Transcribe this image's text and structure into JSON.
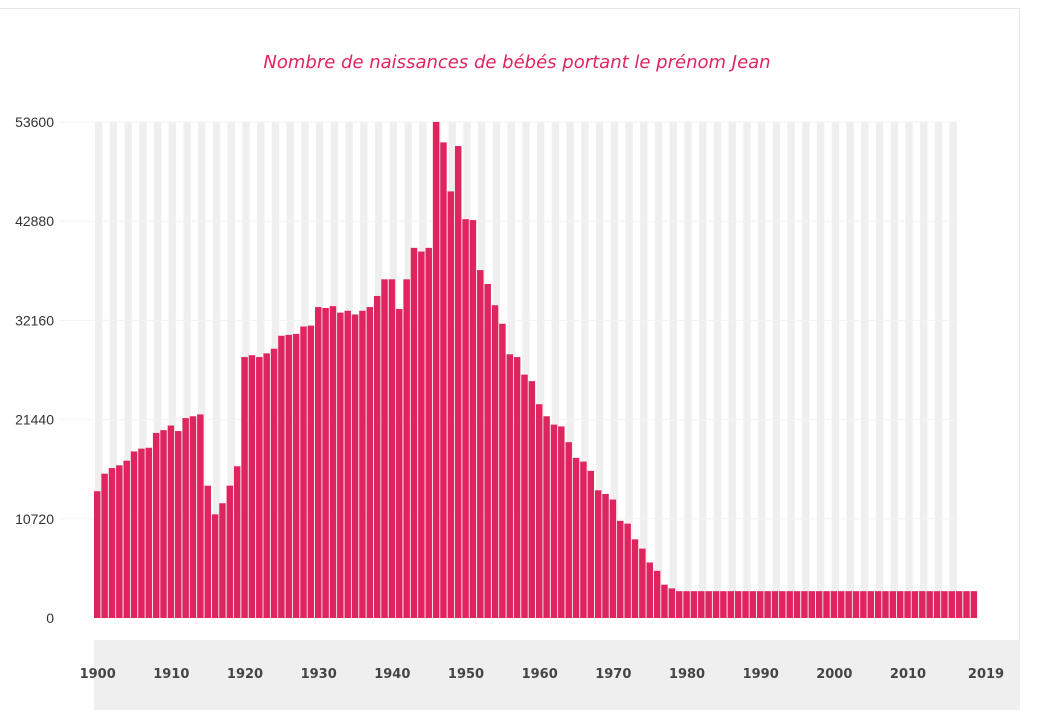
{
  "chart_data": {
    "type": "bar",
    "title": "Nombre de naissances de bébés portant le prénom Jean",
    "xlabel": "",
    "ylabel": "",
    "ylim": [
      0,
      53600
    ],
    "yticks": [
      "0",
      "10720",
      "21440",
      "32160",
      "42880",
      "53600"
    ],
    "xticks": [
      "1900",
      "1910",
      "1920",
      "1930",
      "1940",
      "1950",
      "1960",
      "1970",
      "1980",
      "1990",
      "2000",
      "2010",
      "2019"
    ],
    "grid": "background columns",
    "colors": {
      "bar": "#e0245e",
      "background_column": "#efefef",
      "axis_band": "#efefef",
      "title": "#e0245e"
    },
    "x": [
      1900,
      1901,
      1902,
      1903,
      1904,
      1905,
      1906,
      1907,
      1908,
      1909,
      1910,
      1911,
      1912,
      1913,
      1914,
      1915,
      1916,
      1917,
      1918,
      1919,
      1920,
      1921,
      1922,
      1923,
      1924,
      1925,
      1926,
      1927,
      1928,
      1929,
      1930,
      1931,
      1932,
      1933,
      1934,
      1935,
      1936,
      1937,
      1938,
      1939,
      1940,
      1941,
      1942,
      1943,
      1944,
      1945,
      1946,
      1947,
      1948,
      1949,
      1950,
      1951,
      1952,
      1953,
      1954,
      1955,
      1956,
      1957,
      1958,
      1959,
      1960,
      1961,
      1962,
      1963,
      1964,
      1965,
      1966,
      1967,
      1968,
      1969,
      1970,
      1971,
      1972,
      1973,
      1974,
      1975,
      1976,
      1977,
      1978,
      1979,
      1980,
      1981,
      1982,
      1983,
      1984,
      1985,
      1986,
      1987,
      1988,
      1989,
      1990,
      1991,
      1992,
      1993,
      1994,
      1995,
      1996,
      1997,
      1998,
      1999,
      2000,
      2001,
      2002,
      2003,
      2004,
      2005,
      2006,
      2007,
      2008,
      2009,
      2010,
      2011,
      2012,
      2013,
      2014,
      2015,
      2016,
      2017,
      2018,
      2019
    ],
    "values": [
      13700,
      15600,
      16200,
      16500,
      17000,
      18000,
      18300,
      18400,
      20000,
      20300,
      20800,
      20200,
      21600,
      21800,
      22000,
      14300,
      11200,
      12400,
      14300,
      16400,
      28200,
      28400,
      28200,
      28600,
      29100,
      30500,
      30600,
      30700,
      31500,
      31600,
      33600,
      33500,
      33700,
      33000,
      33200,
      32800,
      33200,
      33600,
      34800,
      36600,
      36600,
      33400,
      36600,
      40000,
      39600,
      40000,
      53600,
      51400,
      46100,
      51000,
      43100,
      43000,
      37600,
      36100,
      33800,
      31800,
      28500,
      28200,
      26300,
      25600,
      23100,
      21800,
      20900,
      20700,
      19000,
      17300,
      16900,
      15900,
      13800,
      13400,
      12800,
      10500,
      10200,
      8500,
      7500,
      6000,
      5100,
      3600,
      3200,
      2900,
      2900,
      2900,
      2900,
      2900,
      2900,
      2900,
      2900,
      2900,
      2900,
      2900,
      2900,
      2900,
      2900,
      2900,
      2900,
      2900,
      2900,
      2900,
      2900,
      2900,
      2900,
      2900,
      2900,
      2900,
      2900,
      2900,
      2900,
      2900,
      2900,
      2900,
      2900,
      2900,
      2900,
      2900,
      2900,
      2900,
      2900,
      2900,
      2900,
      2900
    ]
  }
}
